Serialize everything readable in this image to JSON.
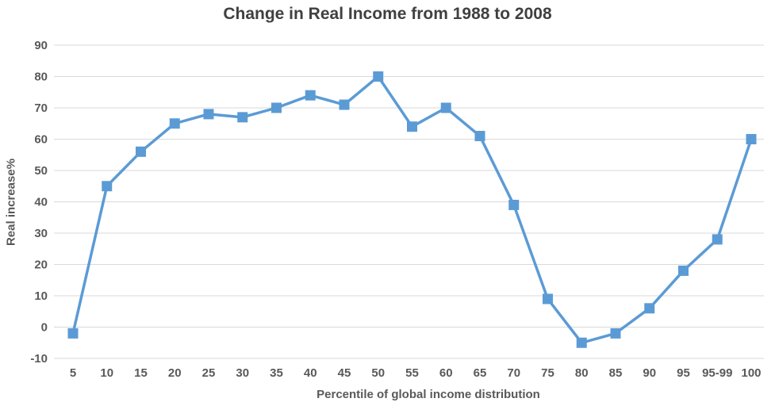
{
  "chart_data": {
    "type": "line",
    "title": "Change in Real Income from 1988 to 2008",
    "xlabel": "Percentile of global income distribution",
    "ylabel": "Real increase%",
    "categories": [
      "5",
      "10",
      "15",
      "20",
      "25",
      "30",
      "35",
      "40",
      "45",
      "50",
      "55",
      "60",
      "65",
      "70",
      "75",
      "80",
      "85",
      "90",
      "95",
      "95-99",
      "100"
    ],
    "values": [
      -2,
      45,
      56,
      65,
      68,
      67,
      70,
      74,
      71,
      80,
      64,
      70,
      61,
      39,
      9,
      -5,
      -2,
      6,
      18,
      28,
      60
    ],
    "ylim": [
      -10,
      90
    ],
    "ytick_step": 10,
    "grid": "horizontal",
    "legend": "none",
    "marker": "square",
    "line_color": "#5b9bd5",
    "marker_color": "#5b9bd5",
    "gridline_color": "#d9d9d9",
    "tick_label_color": "#595959",
    "title_color": "#404040",
    "background_color": "#ffffff"
  }
}
